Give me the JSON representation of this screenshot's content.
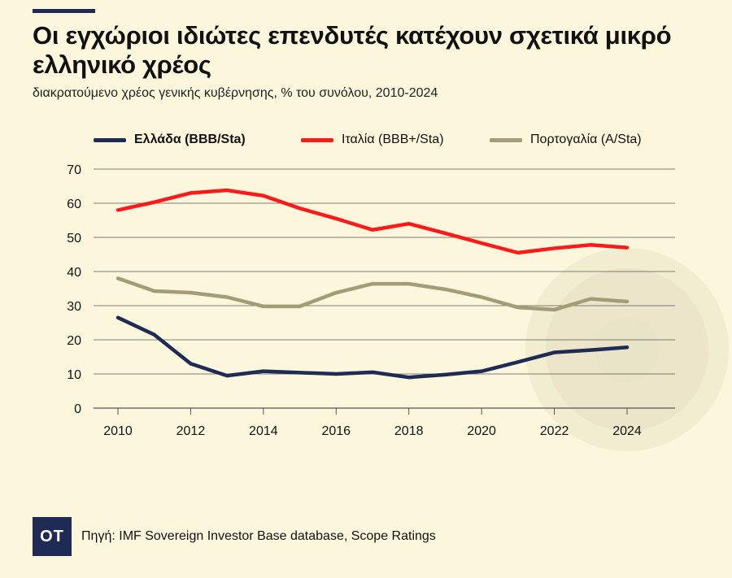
{
  "header": {
    "title": "Οι εγχώριοι ιδιώτες επενδυτές κατέχουν σχετικά μικρό ελληνικό χρέος",
    "subtitle": "διακρατούμενο χρέος γενικής κυβέρνησης, % του συνόλου, 2010-2024"
  },
  "footer": {
    "logo": "OT",
    "source": "Πηγή: IMF Sovereign Investor Base database, Scope Ratings"
  },
  "colors": {
    "background": "#fcf7dc",
    "gridline": "#555555",
    "decor_circle": "#e9e3c8"
  },
  "chart_data": {
    "type": "line",
    "x": [
      2010,
      2011,
      2012,
      2013,
      2014,
      2015,
      2016,
      2017,
      2018,
      2019,
      2020,
      2021,
      2022,
      2023,
      2024
    ],
    "x_tick_labels": [
      "2010",
      "2012",
      "2014",
      "2016",
      "2018",
      "2020",
      "2022",
      "2024"
    ],
    "y_tick_labels": [
      "0",
      "10",
      "20",
      "30",
      "40",
      "50",
      "60",
      "70"
    ],
    "ylim": [
      0,
      70
    ],
    "xlim": [
      2010,
      2024
    ],
    "grid": true,
    "legend_position": "top",
    "series": [
      {
        "name": "Ελλάδα (BBB/Sta)",
        "color": "#1f2a55",
        "bold_label": true,
        "values": [
          26.5,
          21.5,
          13,
          9.5,
          10.8,
          10.4,
          10,
          10.5,
          9,
          9.8,
          10.8,
          13.5,
          16.3,
          17,
          17.8
        ]
      },
      {
        "name": "Ιταλία (BBB+/Sta)",
        "color": "#ff1a1a",
        "bold_label": false,
        "values": [
          58,
          60.3,
          63,
          63.8,
          62.2,
          58.5,
          55.5,
          52.2,
          54,
          51.2,
          48.3,
          45.5,
          46.8,
          47.8,
          47
        ]
      },
      {
        "name": "Πορτογαλία (A/Sta)",
        "color": "#a39c76",
        "bold_label": false,
        "values": [
          38,
          34.3,
          33.8,
          32.5,
          29.8,
          29.8,
          33.8,
          36.4,
          36.4,
          34.8,
          32.5,
          29.5,
          28.8,
          32,
          31.2
        ]
      }
    ]
  }
}
